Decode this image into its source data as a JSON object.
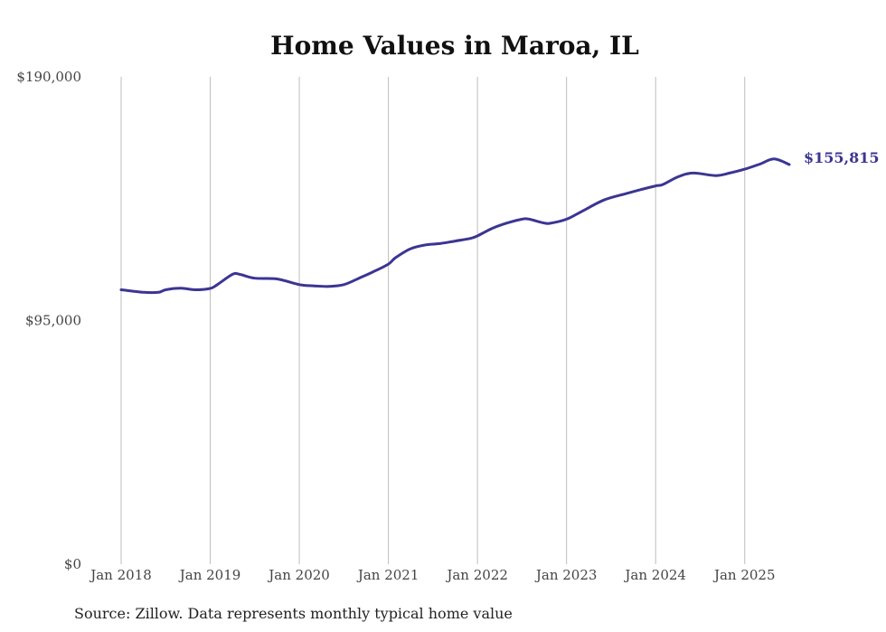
{
  "chart_data": {
    "type": "line",
    "title": "Home Values in Maroa, IL",
    "source_note": "Source: Zillow. Data represents monthly typical home value",
    "y_tick_labels": [
      "$0",
      "$95,000",
      "$190,000"
    ],
    "y_tick_values": [
      0,
      95000,
      190000
    ],
    "ylim": [
      0,
      190000
    ],
    "x_tick_labels": [
      "Jan 2018",
      "Jan 2019",
      "Jan 2020",
      "Jan 2021",
      "Jan 2022",
      "Jan 2023",
      "Jan 2024",
      "Jan 2025"
    ],
    "x_tick_values": [
      2018.0,
      2019.0,
      2020.0,
      2021.0,
      2022.0,
      2023.0,
      2024.0,
      2025.0
    ],
    "xlim": [
      2018.0,
      2025.5
    ],
    "grid": "vertical",
    "line_color": "#3b3593",
    "end_label": "$155,815",
    "series": [
      {
        "x": [
          2018.0,
          2018.25,
          2018.42,
          2018.5,
          2018.67,
          2018.83,
          2019.0,
          2019.08,
          2019.25,
          2019.33,
          2019.5,
          2019.75,
          2020.0,
          2020.17,
          2020.33,
          2020.5,
          2020.67,
          2020.83,
          2021.0,
          2021.08,
          2021.25,
          2021.42,
          2021.58,
          2021.75,
          2021.92,
          2022.0,
          2022.17,
          2022.33,
          2022.5,
          2022.58,
          2022.75,
          2022.83,
          2023.0,
          2023.17,
          2023.42,
          2023.67,
          2023.83,
          2024.0,
          2024.08,
          2024.25,
          2024.42,
          2024.67,
          2024.83,
          2025.0,
          2025.17,
          2025.33,
          2025.5
        ],
        "y": [
          107000,
          106000,
          106000,
          107000,
          107600,
          107000,
          107500,
          109000,
          113000,
          113000,
          111500,
          111200,
          109000,
          108500,
          108300,
          109000,
          111500,
          114000,
          117000,
          119500,
          123000,
          124500,
          125000,
          126000,
          127000,
          128000,
          131000,
          133000,
          134500,
          134500,
          133000,
          133000,
          134500,
          137500,
          142000,
          144500,
          146000,
          147500,
          148000,
          151000,
          152500,
          151500,
          152500,
          154000,
          156000,
          158000,
          155815
        ]
      }
    ]
  }
}
